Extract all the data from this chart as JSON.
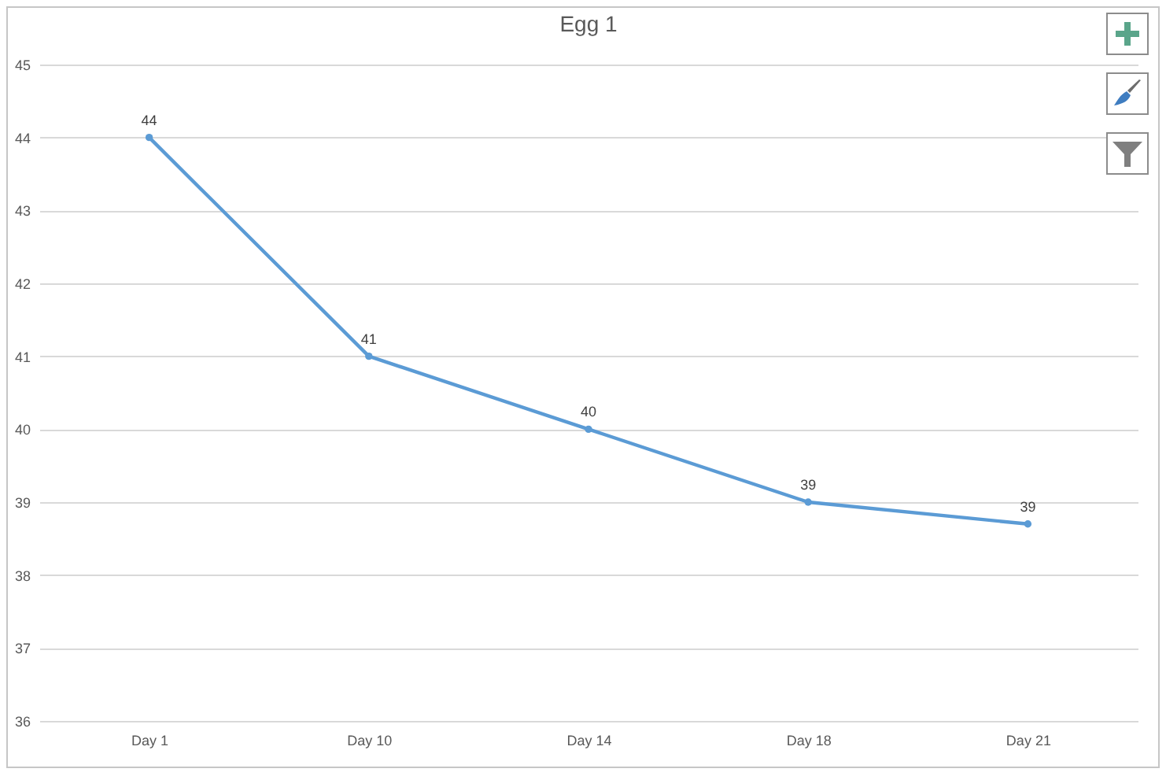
{
  "chart_data": {
    "type": "line",
    "title": "Egg 1",
    "categories": [
      "Day 1",
      "Day 10",
      "Day 14",
      "Day 18",
      "Day 21"
    ],
    "values": [
      44,
      41,
      40,
      39,
      38.7
    ],
    "value_labels": [
      "44",
      "41",
      "40",
      "39",
      "39"
    ],
    "color": "#5b9bd5",
    "ylim": [
      36,
      45
    ],
    "yticks": [
      36,
      37,
      38,
      39,
      40,
      41,
      42,
      43,
      44,
      45
    ],
    "grid": "y",
    "marker": "circle",
    "line_style": "solid"
  }
}
